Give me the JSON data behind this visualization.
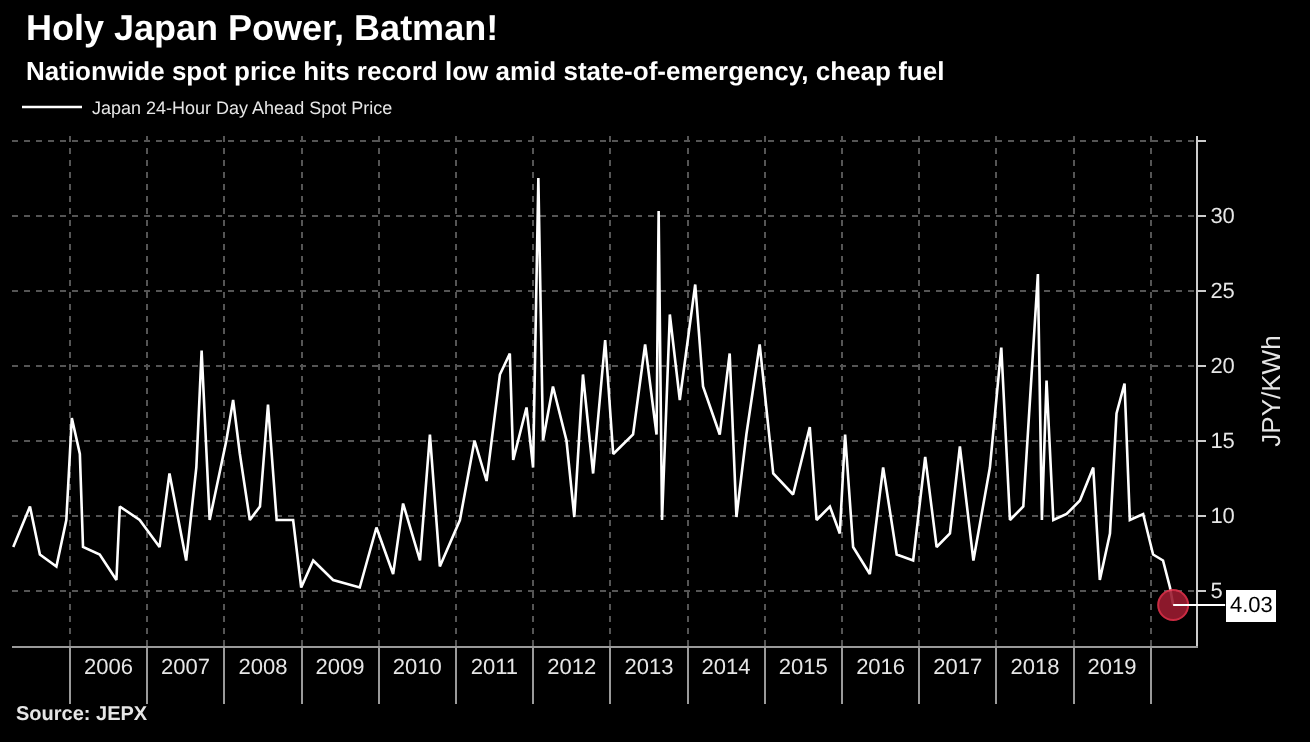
{
  "chart_data": {
    "type": "line",
    "title": "Holy Japan Power, Batman!",
    "subtitle": "Nationwide spot price hits record low amid state-of-emergency, cheap fuel",
    "ylabel": "JPY/KWh",
    "x": [
      "2005-04-08",
      "2005-06-26",
      "2005-08-12",
      "2005-10-29",
      "2005-12-15",
      "2006-01-10",
      "2006-02-17",
      "2006-03-04",
      "2006-05-22",
      "2006-08-09",
      "2006-08-25",
      "2006-11-27",
      "2007-03-01",
      "2007-04-17",
      "2007-07-05",
      "2007-08-22",
      "2007-09-16",
      "2007-10-24",
      "2008-01-11",
      "2008-02-12",
      "2008-03-15",
      "2008-05-01",
      "2008-06-18",
      "2008-07-26",
      "2008-09-05",
      "2008-11-22",
      "2008-12-30",
      "2009-02-25",
      "2009-05-30",
      "2009-10-03",
      "2009-12-21",
      "2010-03-10",
      "2010-04-26",
      "2010-07-15",
      "2010-08-31",
      "2010-10-17",
      "2011-01-20",
      "2011-03-30",
      "2011-05-26",
      "2011-07-28",
      "2011-09-13",
      "2011-09-29",
      "2011-12-01",
      "2012-01-01",
      "2012-01-26",
      "2012-02-17",
      "2012-04-04",
      "2012-06-07",
      "2012-07-14",
      "2012-08-24",
      "2012-10-11",
      "2012-12-07",
      "2013-01-14",
      "2013-04-18",
      "2013-06-14",
      "2013-08-07",
      "2013-08-17",
      "2013-09-02",
      "2013-10-09",
      "2013-11-25",
      "2014-02-06",
      "2014-03-15",
      "2014-06-02",
      "2014-07-19",
      "2014-08-20",
      "2014-10-06",
      "2014-12-08",
      "2015-02-10",
      "2015-05-15",
      "2015-08-02",
      "2015-09-03",
      "2015-11-05",
      "2015-12-22",
      "2016-01-16",
      "2016-02-23",
      "2016-05-12",
      "2016-07-14",
      "2016-09-16",
      "2016-12-03",
      "2017-01-29",
      "2017-03-24",
      "2017-05-26",
      "2017-07-12",
      "2017-09-14",
      "2017-12-01",
      "2018-01-24",
      "2018-03-06",
      "2018-05-08",
      "2018-07-16",
      "2018-08-04",
      "2018-08-26",
      "2018-09-27",
      "2018-11-29",
      "2019-01-31",
      "2019-04-04",
      "2019-05-05",
      "2019-06-22",
      "2019-07-23",
      "2019-08-30",
      "2019-09-24",
      "2019-11-26",
      "2020-01-12",
      "2020-02-28",
      "2020-04-01",
      "2020-04-16"
    ],
    "series": [
      {
        "name": "Japan 24-Hour Day Ahead Spot Price",
        "color": "#ffffff",
        "values": [
          7.9,
          10.6,
          7.4,
          6.6,
          9.7,
          16.5,
          14.1,
          7.9,
          7.4,
          5.7,
          10.6,
          9.7,
          7.9,
          12.8,
          7.0,
          13.2,
          21.0,
          9.7,
          15.0,
          17.7,
          14.1,
          9.7,
          10.6,
          17.4,
          9.7,
          9.7,
          5.2,
          7.0,
          5.7,
          5.2,
          9.2,
          6.1,
          10.8,
          7.0,
          15.4,
          6.6,
          9.7,
          15.0,
          12.3,
          19.4,
          20.8,
          13.7,
          17.2,
          13.2,
          32.5,
          15.0,
          18.6,
          15.0,
          9.9,
          19.4,
          12.8,
          21.7,
          14.1,
          15.4,
          21.4,
          15.4,
          30.3,
          9.7,
          23.4,
          17.7,
          25.4,
          18.6,
          15.4,
          20.8,
          9.9,
          15.4,
          21.4,
          12.8,
          11.4,
          15.9,
          9.7,
          10.6,
          8.8,
          15.4,
          7.9,
          6.1,
          13.2,
          7.4,
          7.0,
          13.9,
          7.9,
          8.8,
          14.6,
          7.0,
          13.2,
          21.2,
          9.7,
          10.6,
          26.1,
          9.7,
          19.0,
          9.7,
          10.1,
          11.0,
          13.2,
          5.7,
          8.8,
          16.8,
          18.8,
          9.7,
          10.1,
          7.4,
          7.0,
          5.2,
          4.03
        ]
      },
      {
        "type": "scatter",
        "marker": "circle",
        "color": "#9b1b30",
        "x": [
          "2020-04-16"
        ],
        "values": [
          4.03
        ]
      }
    ],
    "xlim": [
      "2005-04-02",
      "2020-08-02"
    ],
    "xticks": [
      {
        "value": "2006-07-02",
        "label": "2006"
      },
      {
        "value": "2007-07-02",
        "label": "2007"
      },
      {
        "value": "2008-07-02",
        "label": "2008"
      },
      {
        "value": "2009-07-02",
        "label": "2009"
      },
      {
        "value": "2010-07-02",
        "label": "2010"
      },
      {
        "value": "2011-07-02",
        "label": "2011"
      },
      {
        "value": "2012-07-02",
        "label": "2012"
      },
      {
        "value": "2013-07-02",
        "label": "2013"
      },
      {
        "value": "2014-07-02",
        "label": "2014"
      },
      {
        "value": "2015-07-02",
        "label": "2015"
      },
      {
        "value": "2016-07-02",
        "label": "2016"
      },
      {
        "value": "2017-07-02",
        "label": "2017"
      },
      {
        "value": "2018-07-02",
        "label": "2018"
      },
      {
        "value": "2019-07-02",
        "label": "2019"
      }
    ],
    "ylim": [
      1.3,
      35.3
    ],
    "yticks": [
      5,
      10,
      15,
      20,
      25,
      30,
      {
        "value": 35,
        "label": null
      }
    ],
    "grid": true,
    "legend": "top left",
    "marker": "none",
    "line_style": "solid",
    "annotations": [
      "Source: JEPX",
      {
        "text": "4.03",
        "x": "2020-04-16",
        "y": 4.03
      }
    ]
  }
}
